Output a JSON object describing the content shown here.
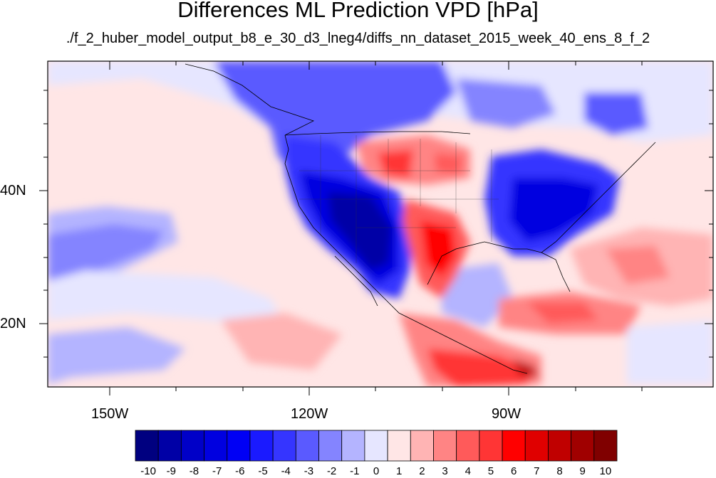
{
  "title": "Differences ML Prediction VPD [hPa]",
  "subtitle": "./f_2_huber_model_output_b8_e_30_d3_lneg4/diffs_nn_dataset_2015_week_40_ens_8_f_2",
  "axes": {
    "lat_labels": [
      "40N",
      "20N"
    ],
    "lon_labels": [
      "150W",
      "120W",
      "90W"
    ]
  },
  "colorbar": {
    "labels": [
      "-10",
      "-9",
      "-8",
      "-7",
      "-6",
      "-5",
      "-4",
      "-3",
      "-2",
      "-1",
      "0",
      "1",
      "2",
      "3",
      "4",
      "5",
      "6",
      "7",
      "8",
      "9",
      "10"
    ],
    "colors": [
      "#000080",
      "#0000a6",
      "#0000c8",
      "#0000e0",
      "#0000f5",
      "#1a1aff",
      "#3535ff",
      "#5a5aff",
      "#8484ff",
      "#b4b4ff",
      "#e6e6ff",
      "#ffe6e6",
      "#ffb4b4",
      "#ff8484",
      "#ff5a5a",
      "#ff3535",
      "#ff0000",
      "#e00000",
      "#c00000",
      "#a00000",
      "#800000"
    ]
  }
}
